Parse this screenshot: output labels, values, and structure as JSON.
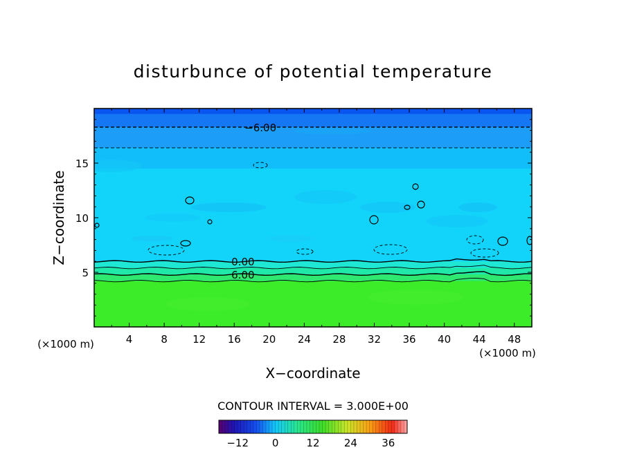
{
  "chart_data": {
    "type": "heatmap",
    "title": "disturbunce of potential temperature",
    "xlabel": "X−coordinate",
    "ylabel": "Z−coordinate",
    "x_unit_left": "(×1000 m)",
    "x_unit_right": "(×1000 m)",
    "xlim": [
      0,
      50
    ],
    "ylim": [
      0,
      20
    ],
    "x_ticks": [
      4,
      8,
      12,
      16,
      20,
      24,
      28,
      32,
      36,
      40,
      44,
      48
    ],
    "y_ticks": [
      5,
      10,
      15
    ],
    "contour_levels": [
      {
        "value": -6,
        "z": 18.3,
        "label": "−6.00",
        "label_x": 19,
        "style": "dashed"
      },
      {
        "value": -3,
        "z": 16.4,
        "label": "",
        "style": "dashed"
      },
      {
        "value": 0,
        "z": 6.0,
        "label": "0.00",
        "label_x": 17,
        "style": "solid"
      },
      {
        "value": 3,
        "z": 5.4,
        "label": "",
        "style": "solid"
      },
      {
        "value": 6,
        "z": 4.8,
        "label": "6.00",
        "label_x": 17,
        "style": "solid"
      },
      {
        "value": 9,
        "z": 4.2,
        "label": "",
        "style": "solid"
      }
    ],
    "bands": [
      {
        "z0": 19.5,
        "z1": 20.0,
        "value": -9,
        "color": "#0a55f0"
      },
      {
        "z0": 18.3,
        "z1": 19.5,
        "value": -7.5,
        "color": "#1677f5"
      },
      {
        "z0": 16.4,
        "z1": 18.3,
        "value": -4.5,
        "color": "#1c9ef8"
      },
      {
        "z0": 14.5,
        "z1": 16.4,
        "value": -2,
        "color": "#11befa"
      },
      {
        "z0": 6.0,
        "z1": 14.5,
        "value": -1,
        "color": "#12d4fb"
      },
      {
        "z0": 5.4,
        "z1": 6.0,
        "value": 1.5,
        "color": "#1ee8d4"
      },
      {
        "z0": 4.8,
        "z1": 5.4,
        "value": 4.5,
        "color": "#20e8a8"
      },
      {
        "z0": 4.2,
        "z1": 4.8,
        "value": 7.5,
        "color": "#2ee870"
      },
      {
        "z0": 0.0,
        "z1": 4.2,
        "value": 10.5,
        "color": "#3cec28"
      }
    ],
    "colorbar": {
      "title": "CONTOUR INTERVAL = 3.000E+00",
      "range": [
        -18,
        42
      ],
      "tick_values": [
        -12,
        0,
        12,
        24,
        36
      ],
      "tick_labels": [
        "−12",
        "0",
        "12",
        "24",
        "36"
      ]
    }
  }
}
